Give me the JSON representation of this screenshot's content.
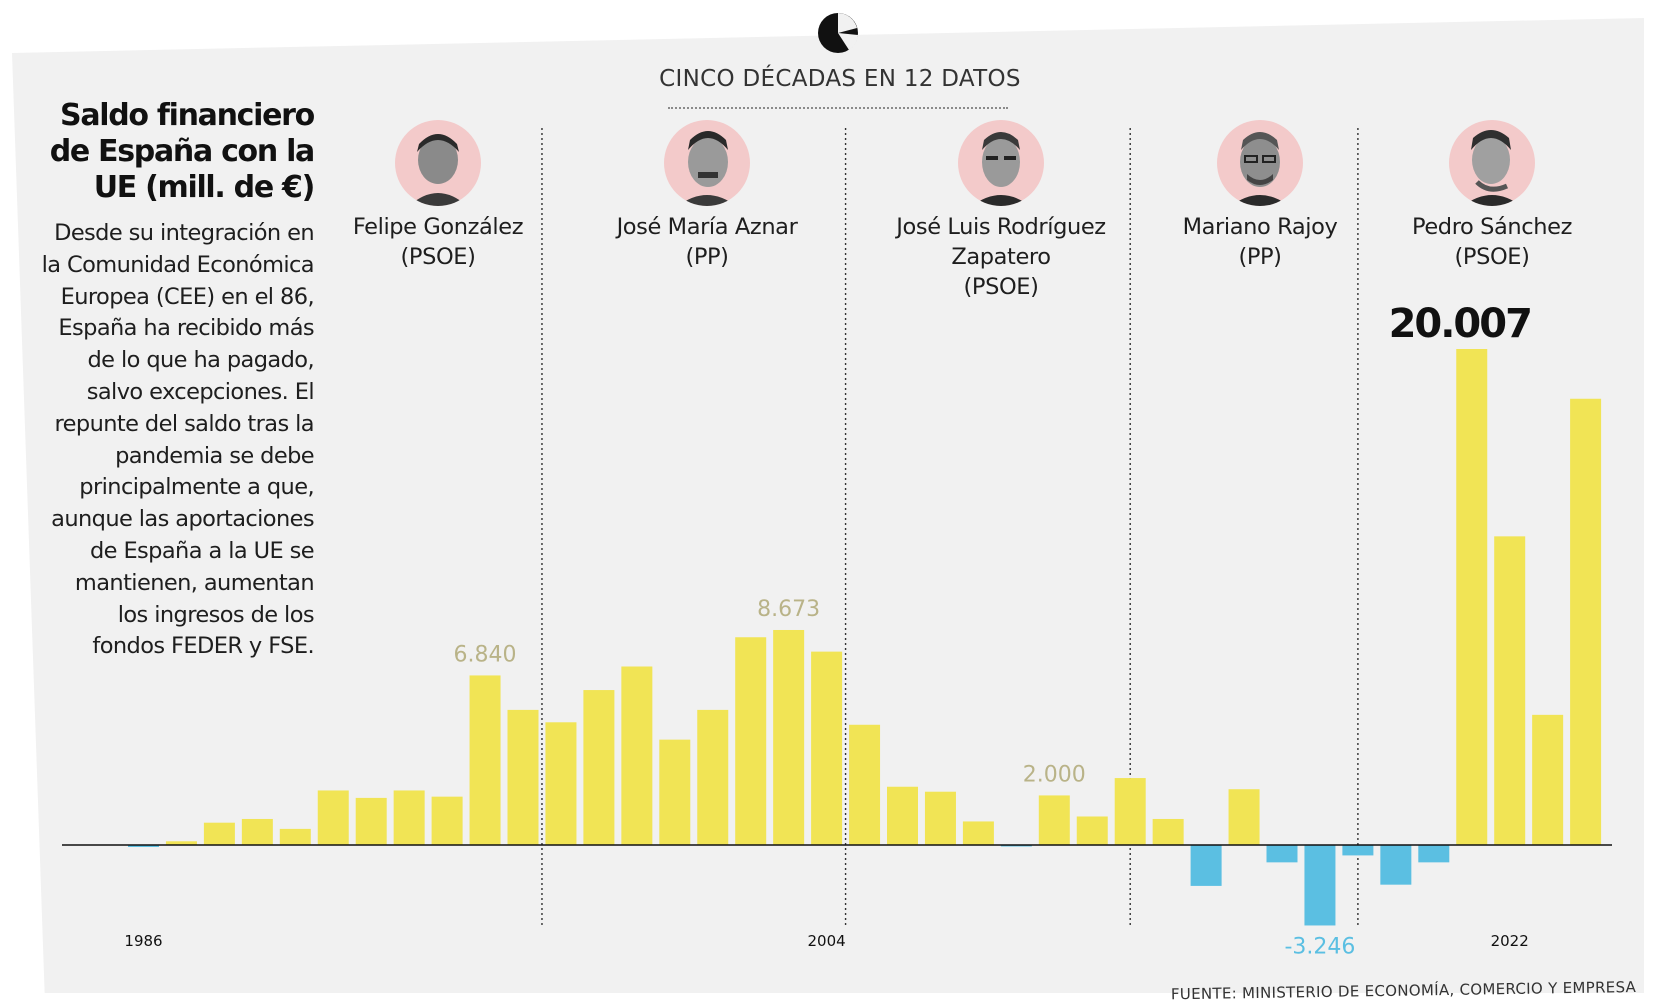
{
  "header": {
    "label": "CINCO DÉCADAS EN 12 DATOS",
    "icon": "pie-chart-icon"
  },
  "title": "Saldo financiero de España con la UE (mill. de €)",
  "description": "Desde su integración en la Comunidad Económica Europea (CEE) en el 86, España ha recibido más de lo que ha pagado, salvo excepciones. El repunte del saldo tras la pandemia se debe principalmente a que, aunque las aportaciones de España a la UE se mantienen, aumentan los ingresos de los fondos FEDER y FSE.",
  "source": "FUENTE: MINISTERIO DE ECONOMÍA, COMERCIO Y EMPRESA",
  "leaders": [
    {
      "name": "Felipe González",
      "party": "(PSOE)"
    },
    {
      "name": "José María Aznar",
      "party": "(PP)"
    },
    {
      "name": "José Luis Rodríguez Zapatero",
      "party": "(PSOE)"
    },
    {
      "name": "Mariano Rajoy",
      "party": "(PP)"
    },
    {
      "name": "Pedro Sánchez",
      "party": "(PSOE)"
    }
  ],
  "chart_data": {
    "type": "bar",
    "title": "Saldo financiero de España con la UE (mill. de €)",
    "x": [
      1986,
      1987,
      1988,
      1989,
      1990,
      1991,
      1992,
      1993,
      1994,
      1995,
      1996,
      1997,
      1998,
      1999,
      2000,
      2001,
      2002,
      2003,
      2004,
      2005,
      2006,
      2007,
      2008,
      2009,
      2010,
      2011,
      2012,
      2013,
      2014,
      2015,
      2016,
      2017,
      2018,
      2019,
      2020,
      2021,
      2022,
      2023,
      2024,
      2025
    ],
    "values": [
      -80,
      150,
      900,
      1050,
      650,
      2200,
      1900,
      2200,
      1950,
      6840,
      5450,
      4950,
      6250,
      7200,
      4250,
      5450,
      8380,
      8673,
      7800,
      4850,
      2350,
      2150,
      950,
      -30,
      2000,
      1150,
      2700,
      1050,
      -1650,
      2250,
      -700,
      -3246,
      -420,
      -1600,
      -700,
      20007,
      12450,
      5250,
      18000,
      null
    ],
    "labels": [
      {
        "x": 1995,
        "text": "6.840"
      },
      {
        "x": 2003,
        "text": "8.673"
      },
      {
        "x": 2010,
        "text": "2.000"
      },
      {
        "x": 2017,
        "text": "-3.246"
      },
      {
        "x": 2021,
        "text": "20.007"
      }
    ],
    "x_tick_labels": [
      {
        "x": 1986,
        "text": "1986"
      },
      {
        "x": 2004,
        "text": "2004"
      },
      {
        "x": 2022,
        "text": "2022"
      }
    ],
    "term_boundaries": [
      1996.5,
      2004.5,
      2012,
      2018
    ],
    "colors": {
      "positive": "#f1e455",
      "negative": "#5bbfe2",
      "label_positive": "#b9b388",
      "label_negative": "#5bbfe2",
      "highlight_label": "#111111"
    },
    "grid": false
  }
}
